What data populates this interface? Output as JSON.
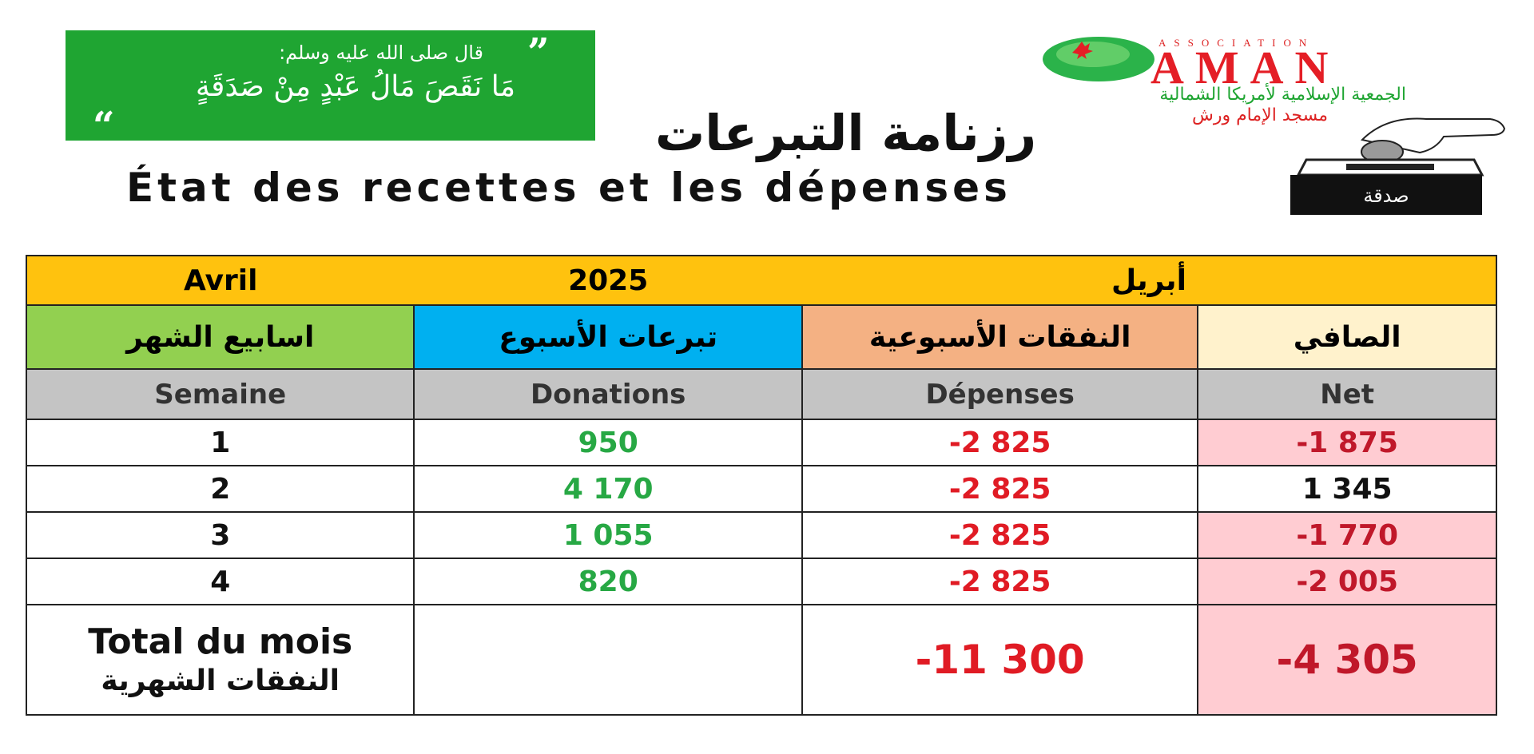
{
  "quote": {
    "open_mark": "”",
    "intro": "قال صلى الله عليه وسلم:",
    "text": "مَا نَقَصَ مَالُ عَبْدٍ مِنْ صَدَقَةٍ",
    "close_mark": "“"
  },
  "logo": {
    "association": "ASSOCIATION",
    "name": "AMAN",
    "subtitle": "الجمعية الإسلامية لأمريكا الشمالية",
    "mosque": "مسجد الإمام ورش"
  },
  "title": {
    "arabic": "رزنامة التبرعات",
    "french": "État des recettes et les dépenses"
  },
  "donation_box_label": "صدقة",
  "table": {
    "month_fr": "Avril",
    "year": "2025",
    "month_ar": "أبريل",
    "headers_ar": [
      "اسابيع الشهر",
      "تبرعات الأسبوع",
      "النفقات الأسبوعية",
      "الصافي"
    ],
    "headers_fr": [
      "Semaine",
      "Donations",
      "Dépenses",
      "Net"
    ],
    "rows": [
      {
        "week": "1",
        "donations": "950",
        "expenses": "-2 825",
        "net": "-1 875"
      },
      {
        "week": "2",
        "donations": "4 170",
        "expenses": "-2 825",
        "net": "1 345"
      },
      {
        "week": "3",
        "donations": "1 055",
        "expenses": "-2 825",
        "net": "-1 770"
      },
      {
        "week": "4",
        "donations": "820",
        "expenses": "-2 825",
        "net": "-2 005"
      }
    ],
    "total_label_fr": "Total du mois",
    "total_label_ar": "النفقات الشهرية",
    "total_donations": "",
    "total_expenses": "-11 300",
    "total_net": "-4 305"
  },
  "colors": {
    "month_bar": "#ffc20e",
    "header_weeks": "#92d050",
    "header_donations": "#00b0f0",
    "header_expenses": "#f4b183",
    "header_net": "#fff2cc",
    "negative_net_bg": "#ffccd2",
    "quote_bg": "#1fa532"
  }
}
